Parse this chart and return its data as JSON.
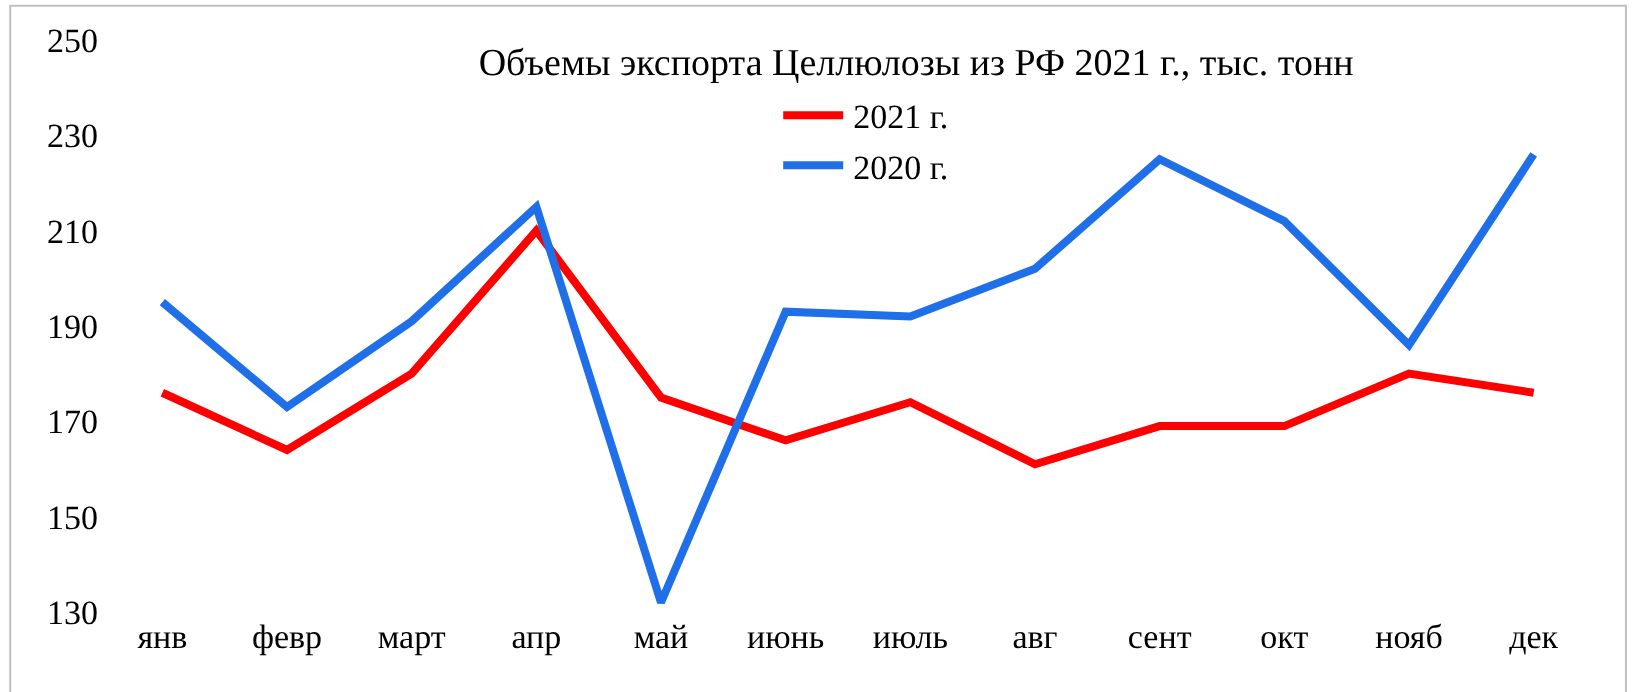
{
  "chart_data": {
    "type": "line",
    "title": "Объемы экспорта Целлюлозы из РФ 2021 г., тыс. тонн",
    "categories": [
      "янв",
      "февр",
      "март",
      "апр",
      "май",
      "июнь",
      "июль",
      "авг",
      "сент",
      "окт",
      "нояб",
      "дек"
    ],
    "series": [
      {
        "name": "2021 г.",
        "color": "#ff0000",
        "values": [
          176,
          164,
          180,
          210,
          175,
          166,
          174,
          161,
          169,
          169,
          180,
          176
        ]
      },
      {
        "name": "2020 г.",
        "color": "#1f6fe8",
        "values": [
          195,
          173,
          191,
          215,
          132,
          193,
          192,
          202,
          225,
          212,
          186,
          226
        ]
      }
    ],
    "ylim": [
      130,
      250
    ],
    "yticks": [
      130,
      150,
      170,
      190,
      210,
      230,
      250
    ],
    "legend": "top",
    "marker": "none",
    "line_style": "solid"
  }
}
